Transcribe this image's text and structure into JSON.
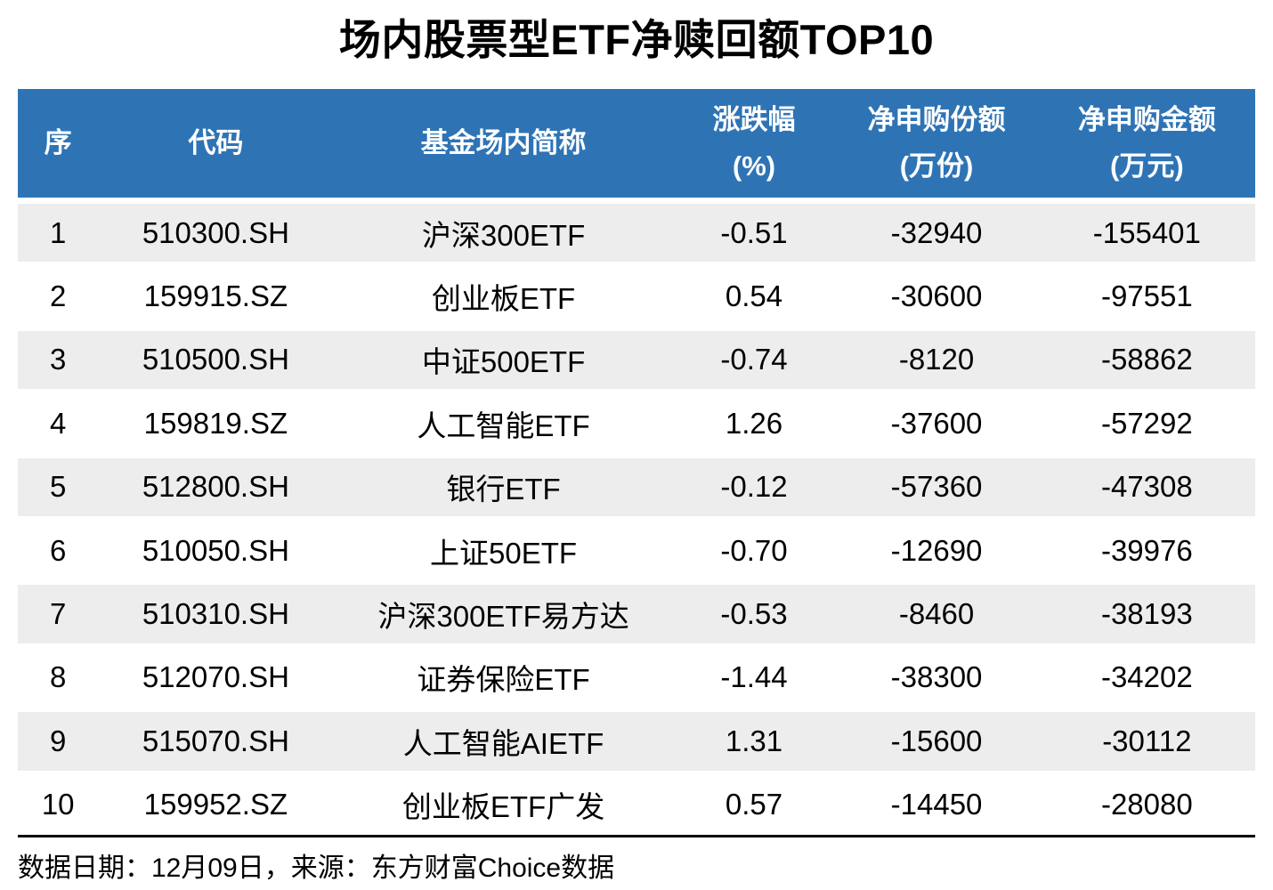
{
  "title": "场内股票型ETF净赎回额TOP10",
  "colors": {
    "header_bg": "#2E74B5",
    "header_text": "#FFFFFF",
    "row_alt_bg": "#EDEDED",
    "row_bg": "#FFFFFF",
    "divider": "#000000",
    "text": "#000000"
  },
  "chart_data": {
    "type": "table",
    "title": "场内股票型ETF净赎回额TOP10",
    "columns": [
      {
        "line1": "序",
        "line2": ""
      },
      {
        "line1": "代码",
        "line2": ""
      },
      {
        "line1": "基金场内简称",
        "line2": ""
      },
      {
        "line1": "涨跌幅",
        "line2": "(%)"
      },
      {
        "line1": "净申购份额",
        "line2": "(万份)"
      },
      {
        "line1": "净申购金额",
        "line2": "(万元)"
      }
    ],
    "rows": [
      {
        "seq": "1",
        "code": "510300.SH",
        "name": "沪深300ETF",
        "change": "-0.51",
        "shares": "-32940",
        "amount": "-155401"
      },
      {
        "seq": "2",
        "code": "159915.SZ",
        "name": "创业板ETF",
        "change": "0.54",
        "shares": "-30600",
        "amount": "-97551"
      },
      {
        "seq": "3",
        "code": "510500.SH",
        "name": "中证500ETF",
        "change": "-0.74",
        "shares": "-8120",
        "amount": "-58862"
      },
      {
        "seq": "4",
        "code": "159819.SZ",
        "name": "人工智能ETF",
        "change": "1.26",
        "shares": "-37600",
        "amount": "-57292"
      },
      {
        "seq": "5",
        "code": "512800.SH",
        "name": "银行ETF",
        "change": "-0.12",
        "shares": "-57360",
        "amount": "-47308"
      },
      {
        "seq": "6",
        "code": "510050.SH",
        "name": "上证50ETF",
        "change": "-0.70",
        "shares": "-12690",
        "amount": "-39976"
      },
      {
        "seq": "7",
        "code": "510310.SH",
        "name": "沪深300ETF易方达",
        "change": "-0.53",
        "shares": "-8460",
        "amount": "-38193"
      },
      {
        "seq": "8",
        "code": "512070.SH",
        "name": "证券保险ETF",
        "change": "-1.44",
        "shares": "-38300",
        "amount": "-34202"
      },
      {
        "seq": "9",
        "code": "515070.SH",
        "name": "人工智能AIETF",
        "change": "1.31",
        "shares": "-15600",
        "amount": "-30112"
      },
      {
        "seq": "10",
        "code": "159952.SZ",
        "name": "创业板ETF广发",
        "change": "0.57",
        "shares": "-14450",
        "amount": "-28080"
      }
    ]
  },
  "footer": {
    "text": "数据日期：12月09日，来源：东方财富Choice数据"
  }
}
